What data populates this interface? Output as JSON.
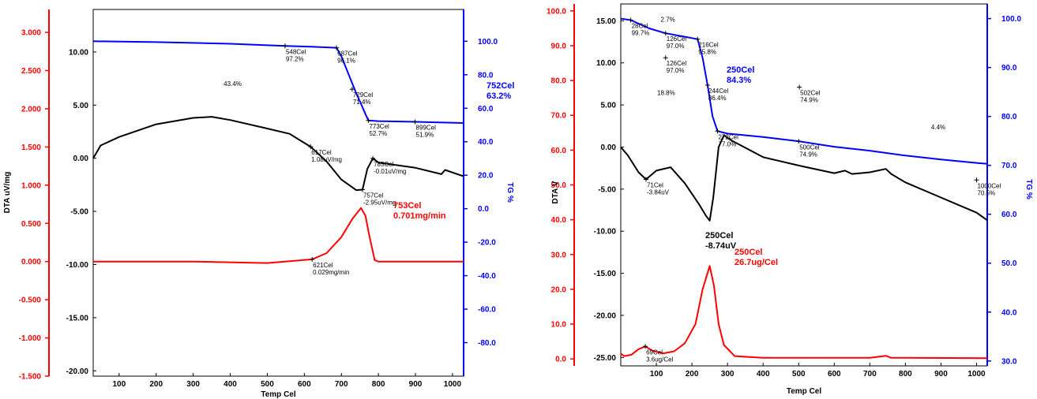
{
  "chart_data": [
    {
      "type": "line",
      "panel": "left",
      "xlabel": "Temp Cel",
      "xlim": [
        30,
        1030
      ],
      "xticks": [
        100,
        200,
        300,
        400,
        500,
        600,
        700,
        800,
        900,
        1000
      ],
      "axes": {
        "dtg": {
          "ylim": [
            -1.5,
            3.3
          ],
          "ticks": [
            "-1.500",
            "-1.000",
            "-0.500",
            "0.000",
            "0.500",
            "1.000",
            "1.500",
            "2.000",
            "2.500",
            "3.000"
          ],
          "tick_values": [
            -1.5,
            -1.0,
            -0.5,
            0,
            0.5,
            1.0,
            1.5,
            2.0,
            2.5,
            3.0
          ],
          "color": "#ff0000"
        },
        "dta": {
          "label": "DTA uV/mg",
          "ylim": [
            -20.5,
            14.0
          ],
          "ticks": [
            "-20.00",
            "-15.00",
            "-10.00",
            "-5.00",
            "0.00",
            "5.00",
            "10.00"
          ],
          "tick_values": [
            -20,
            -15,
            -10,
            -5,
            0,
            5,
            10
          ],
          "color": "#000000"
        },
        "tg": {
          "label": "TG %",
          "ylim": [
            -100.0,
            119.0
          ],
          "ticks": [
            "-80.0",
            "-60.0",
            "-40.0",
            "-20.0",
            "0.0",
            "20.0",
            "40.0",
            "60.0",
            "80.0",
            "100.0"
          ],
          "tick_values": [
            -80,
            -60,
            -40,
            -20,
            0,
            20,
            40,
            60,
            80,
            100
          ],
          "color": "#0000ff"
        }
      },
      "series": [
        {
          "axis": "tg",
          "color": "#0000ff",
          "x": [
            30,
            200,
            400,
            548,
            620,
            687,
            700,
            720,
            740,
            752,
            765,
            773,
            800,
            899,
            1030
          ],
          "y": [
            100.0,
            99.5,
            98.5,
            97.2,
            96.7,
            96.1,
            91.0,
            80.0,
            69.0,
            63.2,
            56.5,
            52.7,
            52.3,
            51.9,
            51.2
          ]
        },
        {
          "axis": "dta",
          "color": "#000000",
          "x": [
            30,
            50,
            100,
            200,
            300,
            350,
            400,
            500,
            560,
            617,
            660,
            700,
            740,
            757,
            770,
            785,
            800,
            900,
            970,
            980,
            1030
          ],
          "y": [
            0.0,
            1.2,
            2.0,
            3.2,
            3.8,
            3.9,
            3.6,
            2.8,
            2.3,
            1.08,
            -0.3,
            -2.0,
            -3.0,
            -2.95,
            -1.0,
            -0.01,
            -0.4,
            -0.9,
            -1.5,
            -1.1,
            -1.7
          ]
        },
        {
          "axis": "dtg",
          "color": "#ff0000",
          "x": [
            30,
            300,
            500,
            521,
            621,
            660,
            700,
            730,
            753,
            765,
            775,
            790,
            800,
            1030
          ],
          "y": [
            0.0,
            0.0,
            -0.02,
            -0.01,
            0.029,
            0.11,
            0.32,
            0.56,
            0.701,
            0.6,
            0.35,
            0.02,
            0.0,
            0.0
          ]
        }
      ],
      "annotations": [
        {
          "text": [
            "548Cel",
            "97.2%"
          ],
          "axis": "tg",
          "x": 548,
          "y": 97.2
        },
        {
          "text": [
            "687Cel",
            "96.1%"
          ],
          "axis": "tg",
          "x": 687,
          "y": 96.1
        },
        {
          "text": [
            "43.4%"
          ],
          "axis": "tg",
          "x": 380,
          "y": 78
        },
        {
          "text": [
            "729Cel",
            "71.4%"
          ],
          "axis": "tg",
          "x": 729,
          "y": 71.4
        },
        {
          "text": [
            "773Cel",
            "52.7%"
          ],
          "axis": "tg",
          "x": 773,
          "y": 52.7
        },
        {
          "text": [
            "899Cel",
            "51.9%"
          ],
          "axis": "tg",
          "x": 899,
          "y": 51.9
        },
        {
          "text": [
            "617Cel",
            "1.08uV/mg"
          ],
          "axis": "dta",
          "x": 617,
          "y": 1.08
        },
        {
          "text": [
            "785Cel",
            "-0.01uV/mg"
          ],
          "axis": "dta",
          "x": 785,
          "y": -0.01
        },
        {
          "text": [
            "757Cel",
            "-2.95uV/mg"
          ],
          "axis": "dta",
          "x": 757,
          "y": -2.95
        },
        {
          "text": [
            "621Cel",
            "0.029mg/min"
          ],
          "axis": "dtg",
          "x": 621,
          "y": 0.029
        }
      ],
      "callouts": [
        {
          "text": [
            "752Cel",
            "63.2%"
          ],
          "color": "#0000ff"
        },
        {
          "text": [
            "753Cel",
            "0.701mg/min"
          ],
          "color": "#ff0000"
        }
      ]
    },
    {
      "type": "line",
      "panel": "right",
      "xlabel": "Temp Cel",
      "xlim": [
        0,
        1030
      ],
      "xticks": [
        100,
        200,
        300,
        400,
        500,
        600,
        700,
        800,
        900,
        1000
      ],
      "axes": {
        "dtg": {
          "ylim": [
            -2.0,
            102.0
          ],
          "ticks": [
            "0.0",
            "10.0",
            "20.0",
            "30.0",
            "40.0",
            "50.0",
            "60.0",
            "70.0",
            "80.0",
            "90.0",
            "100.0"
          ],
          "tick_values": [
            0,
            10,
            20,
            30,
            40,
            50,
            60,
            70,
            80,
            90,
            100
          ],
          "color": "#ff0000"
        },
        "dta": {
          "label": "DTA V",
          "ylim": [
            -26.0,
            17.0
          ],
          "ticks": [
            "-25.00",
            "-20.00",
            "-15.00",
            "-10.00",
            "-5.00",
            "0.00",
            "5.00",
            "10.00",
            "15.00"
          ],
          "tick_values": [
            -25,
            -20,
            -15,
            -10,
            -5,
            0,
            5,
            10,
            15
          ],
          "color": "#000000"
        },
        "tg": {
          "label": "TG %",
          "ylim": [
            29.0,
            103.0
          ],
          "ticks": [
            "30.0",
            "40.0",
            "50.0",
            "60.0",
            "70.0",
            "80.0",
            "90.0",
            "100.0"
          ],
          "tick_values": [
            30,
            40,
            50,
            60,
            70,
            80,
            90,
            100
          ],
          "color": "#0000ff"
        }
      },
      "series": [
        {
          "axis": "tg",
          "color": "#0000ff",
          "x": [
            0,
            28,
            80,
            126,
            180,
            216,
            230,
            244,
            258,
            272,
            300,
            400,
            502,
            600,
            700,
            800,
            900,
            1000,
            1030
          ],
          "y": [
            100.0,
            99.7,
            98.0,
            97.0,
            96.3,
            95.8,
            92.0,
            86.4,
            80.0,
            77.0,
            76.5,
            75.8,
            74.9,
            73.8,
            73.0,
            72.0,
            71.2,
            70.5,
            70.3
          ]
        },
        {
          "axis": "dta",
          "color": "#000000",
          "x": [
            0,
            20,
            50,
            71,
            100,
            140,
            180,
            220,
            240,
            250,
            260,
            275,
            290,
            310,
            400,
            500,
            600,
            630,
            650,
            700,
            745,
            760,
            800,
            900,
            1000,
            1030
          ],
          "y": [
            0.0,
            -1.0,
            -3.0,
            -3.84,
            -2.8,
            -2.4,
            -4.3,
            -6.8,
            -8.2,
            -8.74,
            -6.0,
            0.0,
            1.4,
            0.8,
            -1.2,
            -2.2,
            -3.1,
            -2.8,
            -3.2,
            -3.0,
            -2.6,
            -3.2,
            -4.2,
            -6.0,
            -7.8,
            -8.7
          ]
        },
        {
          "axis": "dtg",
          "color": "#ff0000",
          "x": [
            0,
            10,
            30,
            50,
            69,
            90,
            120,
            150,
            180,
            210,
            230,
            250,
            262,
            275,
            290,
            320,
            400,
            700,
            745,
            760,
            800,
            1030
          ],
          "y": [
            1.5,
            0.8,
            1.2,
            2.8,
            3.6,
            2.3,
            1.6,
            2.2,
            4.5,
            10.0,
            20.0,
            26.7,
            21.0,
            10.0,
            4.0,
            0.8,
            0.3,
            0.3,
            0.9,
            0.3,
            0.3,
            0.2
          ]
        }
      ],
      "annotations": [
        {
          "text": [
            "28Cel",
            "99.7%"
          ],
          "axis": "tg",
          "x": 28,
          "y": 99.7
        },
        {
          "text": [
            "2.7%"
          ],
          "axis": "tg",
          "x": 110,
          "y": 101
        },
        {
          "text": [
            "126Cel",
            "97.0%"
          ],
          "axis": "tg",
          "x": 126,
          "y": 97.0
        },
        {
          "text": [
            "216Cel",
            "95.8%"
          ],
          "axis": "tg",
          "x": 216,
          "y": 95.8
        },
        {
          "text": [
            "126Cel",
            "97.0%"
          ],
          "axis": "tg",
          "x": 126,
          "y": 92.0
        },
        {
          "text": [
            "18.8%"
          ],
          "axis": "tg",
          "x": 100,
          "y": 86.0
        },
        {
          "text": [
            "244Cel",
            "86.4%"
          ],
          "axis": "tg",
          "x": 244,
          "y": 86.4
        },
        {
          "text": [
            "272Cel",
            "77.0%"
          ],
          "axis": "tg",
          "x": 272,
          "y": 77.0
        },
        {
          "text": [
            "502Cel",
            "74.9%"
          ],
          "axis": "tg",
          "x": 502,
          "y": 86.0
        },
        {
          "text": [
            "500Cel",
            "74.9%"
          ],
          "axis": "tg",
          "x": 500,
          "y": 74.9
        },
        {
          "text": [
            "4.4%"
          ],
          "axis": "tg",
          "x": 870,
          "y": 79.0
        },
        {
          "text": [
            "1000Cel",
            "70.5%"
          ],
          "axis": "tg",
          "x": 1000,
          "y": 67.0
        },
        {
          "text": [
            "71Cel",
            "-3.84uV"
          ],
          "axis": "dta",
          "x": 71,
          "y": -3.84
        },
        {
          "text": [
            "69Cel",
            "3.6ug/Cel"
          ],
          "axis": "dtg",
          "x": 69,
          "y": 3.6
        }
      ],
      "callouts": [
        {
          "text": [
            "250Cel",
            "84.3%"
          ],
          "color": "#0000ff"
        },
        {
          "text": [
            "250Cel",
            "-8.74uV"
          ],
          "color": "#000000"
        },
        {
          "text": [
            "250Cel",
            "26.7ug/Cel"
          ],
          "color": "#ff0000"
        }
      ]
    }
  ]
}
